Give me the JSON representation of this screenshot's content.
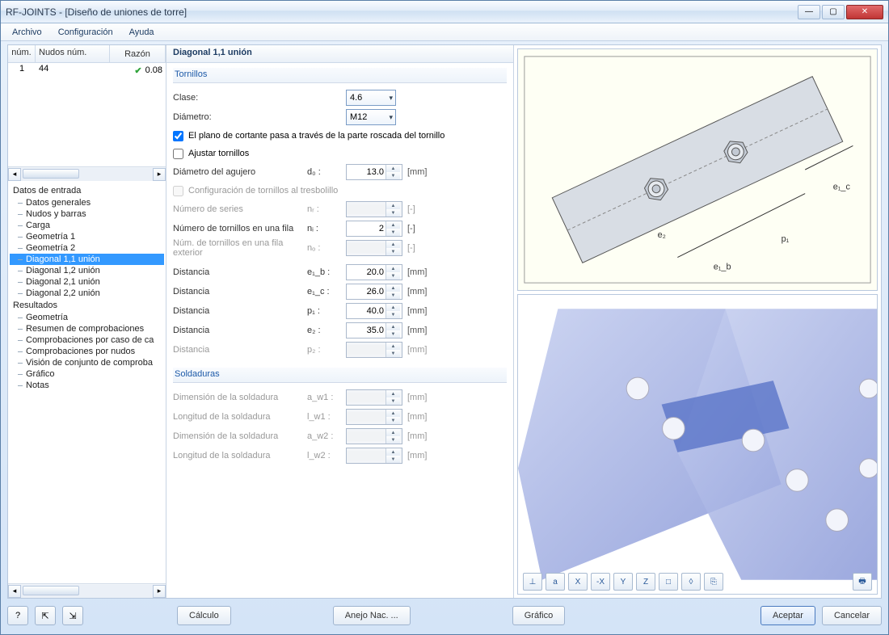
{
  "window": {
    "title": "RF-JOINTS - [Diseño de uniones de torre]"
  },
  "menu": {
    "archivo": "Archivo",
    "config": "Configuración",
    "ayuda": "Ayuda"
  },
  "grid": {
    "col_num": "núm.",
    "col_nudos": "Nudos núm.",
    "col_razon": "Razón",
    "row": {
      "num": "1",
      "nudos": "44",
      "razon": "0.08"
    }
  },
  "tree": {
    "datos_entrada": "Datos de entrada",
    "items1": [
      "Datos generales",
      "Nudos y barras",
      "Carga",
      "Geometría 1",
      "Geometría 2",
      "Diagonal 1,1 unión",
      "Diagonal 1,2 unión",
      "Diagonal 2,1 unión",
      "Diagonal 2,2 unión"
    ],
    "resultados": "Resultados",
    "items2": [
      "Geometría",
      "Resumen de comprobaciones",
      "Comprobaciones por caso de ca",
      "Comprobaciones por nudos",
      "Visión de conjunto de comproba",
      "Gráfico",
      "Notas"
    ],
    "selected": "Diagonal 1,1 unión"
  },
  "panel": {
    "title": "Diagonal 1,1 unión",
    "sec_tornillos": "Tornillos",
    "clase_label": "Clase:",
    "clase_val": "4.6",
    "diam_label": "Diámetro:",
    "diam_val": "M12",
    "chk_plano": "El plano de cortante pasa a través de la parte roscada del tornillo",
    "chk_ajustar": "Ajustar tornillos",
    "dia_agujero": "Diámetro del agujero",
    "d0_sym": "d₀ :",
    "d0_val": "13.0",
    "chk_tresbolillo": "Configuración de tornillos al tresbolillo",
    "num_series": "Número de series",
    "nr_sym": "nᵣ :",
    "num_tornillos_fila": "Número de tornillos en una fila",
    "ni_sym": "nᵢ :",
    "ni_val": "2",
    "num_tornillos_ext": "Núm. de tornillos en una fila exterior",
    "no_sym": "nₒ :",
    "dist": "Distancia",
    "e1b_sym": "e₁_b :",
    "e1b_val": "20.0",
    "e1c_sym": "e₁_c :",
    "e1c_val": "26.0",
    "p1_sym": "p₁ :",
    "p1_val": "40.0",
    "e2_sym": "e₂ :",
    "e2_val": "35.0",
    "p2_sym": "p₂ :",
    "sec_soldaduras": "Soldaduras",
    "dim_sold": "Dimensión de la soldadura",
    "long_sold": "Longitud de la soldadura",
    "aw1": "a_w1 :",
    "lw1": "l_w1 :",
    "aw2": "a_w2 :",
    "lw2": "l_w2 :",
    "unit_mm": "[mm]",
    "unit_dash": "[-]"
  },
  "diagram": {
    "e1c": "e₁_c",
    "p1": "p₁",
    "e1b": "e₁_b",
    "e2": "e₂"
  },
  "toolbar3d": [
    "⊥",
    "a",
    "X",
    "-X",
    "Y",
    "Z",
    "□",
    "◊",
    "⎘"
  ],
  "footer": {
    "help": "?",
    "b1": "↥",
    "b2": "↧",
    "calculo": "Cálculo",
    "anejo": "Anejo Nac. ...",
    "grafico": "Gráfico",
    "aceptar": "Aceptar",
    "cancelar": "Cancelar"
  }
}
